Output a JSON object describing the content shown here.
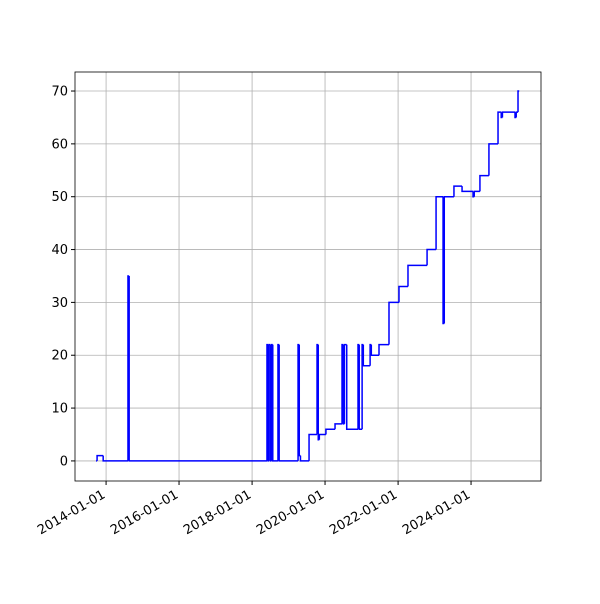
{
  "chart_data": {
    "type": "line",
    "step": "post",
    "grid": true,
    "x": [
      "2013-09-23",
      "2013-10-03",
      "2013-12-03",
      "2014-08-08",
      "2014-08-20",
      "2018-05-30",
      "2018-06-10",
      "2018-06-19",
      "2018-07-03",
      "2018-07-15",
      "2018-07-27",
      "2018-09-17",
      "2018-09-29",
      "2019-04-06",
      "2019-04-18",
      "2019-04-30",
      "2019-07-25",
      "2019-10-13",
      "2019-10-25",
      "2019-11-05",
      "2020-01-10",
      "2020-04-10",
      "2020-06-19",
      "2020-07-01",
      "2020-07-13",
      "2020-08-05",
      "2020-11-26",
      "2020-12-08",
      "2021-01-06",
      "2021-01-18",
      "2021-03-27",
      "2021-04-08",
      "2021-06-24",
      "2021-10-02",
      "2022-01-10",
      "2022-04-10",
      "2022-10-18",
      "2023-01-16",
      "2023-03-27",
      "2023-04-08",
      "2023-07-14",
      "2023-10-03",
      "2024-01-21",
      "2024-02-02",
      "2024-03-30",
      "2024-06-28",
      "2024-09-27",
      "2024-10-29",
      "2024-11-10",
      "2025-03-16",
      "2025-03-28",
      "2025-04-15",
      "2025-04-27"
    ],
    "series": [
      {
        "color": "#0000ff",
        "values": [
          0,
          1,
          0,
          35,
          0,
          22,
          0,
          22,
          0,
          22,
          0,
          22,
          0,
          22,
          1,
          0,
          5,
          22,
          4,
          5,
          6,
          7,
          22,
          7,
          22,
          6,
          22,
          6,
          22,
          18,
          22,
          20,
          22,
          30,
          33,
          37,
          40,
          50,
          26,
          50,
          52,
          51,
          50,
          51,
          54,
          60,
          66,
          65,
          66,
          65,
          66,
          70,
          70
        ]
      }
    ],
    "xlim": [
      "2013-02-24",
      "2025-12-01"
    ],
    "xticks": [
      "2014-01-01",
      "2016-01-01",
      "2018-01-01",
      "2020-01-01",
      "2022-01-01",
      "2024-01-01"
    ],
    "ylim": [
      -3.8,
      73.6
    ],
    "yticks": [
      0,
      10,
      20,
      30,
      40,
      50,
      60,
      70
    ]
  }
}
